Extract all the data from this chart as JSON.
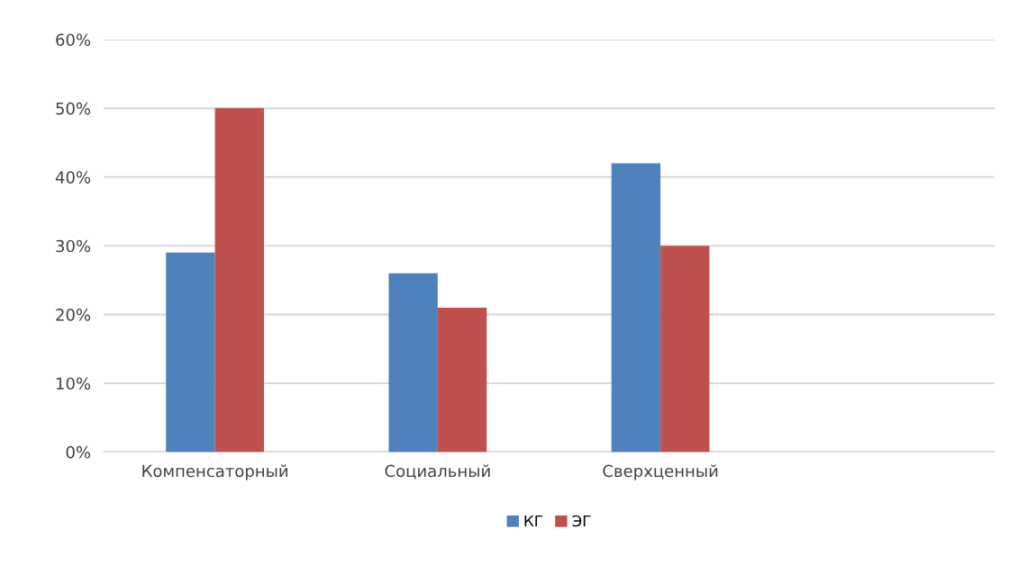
{
  "chart_data": {
    "type": "bar",
    "categories": [
      "Компенсаторный",
      "Социальный",
      "Сверхценный",
      null
    ],
    "series": [
      {
        "name": "КГ",
        "color": "#4f81bd",
        "values": [
          29,
          26,
          42,
          null
        ]
      },
      {
        "name": "ЭГ",
        "color": "#c0504d",
        "values": [
          50,
          21,
          30,
          null
        ]
      }
    ],
    "ylim": [
      0,
      60
    ],
    "yticks": [
      {
        "value": 0,
        "label": "0%"
      },
      {
        "value": 10,
        "label": "10%"
      },
      {
        "value": 20,
        "label": "20%"
      },
      {
        "value": 30,
        "label": "30%"
      },
      {
        "value": 40,
        "label": "40%"
      },
      {
        "value": 50,
        "label": "50%"
      },
      {
        "value": 60,
        "label": "60%"
      }
    ],
    "grid": "y",
    "legend": "bottom"
  }
}
